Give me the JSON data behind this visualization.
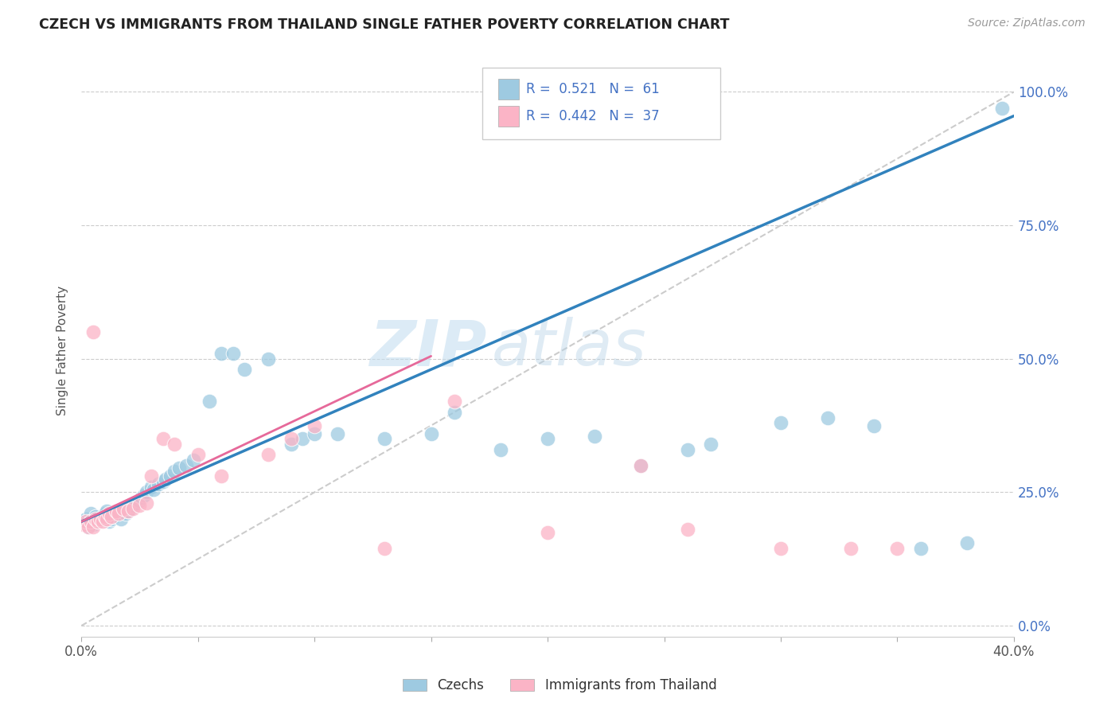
{
  "title": "CZECH VS IMMIGRANTS FROM THAILAND SINGLE FATHER POVERTY CORRELATION CHART",
  "source": "Source: ZipAtlas.com",
  "ylabel": "Single Father Poverty",
  "yticks": [
    "0.0%",
    "25.0%",
    "50.0%",
    "75.0%",
    "100.0%"
  ],
  "ytick_vals": [
    0.0,
    0.25,
    0.5,
    0.75,
    1.0
  ],
  "xlim": [
    0,
    0.4
  ],
  "ylim": [
    -0.02,
    1.05
  ],
  "legend_labels": [
    "Czechs",
    "Immigrants from Thailand"
  ],
  "czech_R": "0.521",
  "czech_N": "61",
  "thai_R": "0.442",
  "thai_N": "37",
  "czech_color": "#9ecae1",
  "thai_color": "#fbb4c6",
  "czech_line_color": "#3182bd",
  "thai_line_color": "#e6699a",
  "dashed_line_color": "#cccccc",
  "watermark_zip": "ZIP",
  "watermark_atlas": "atlas",
  "background_color": "#ffffff",
  "czech_scatter_x": [
    0.001,
    0.002,
    0.003,
    0.004,
    0.005,
    0.006,
    0.007,
    0.008,
    0.009,
    0.01,
    0.011,
    0.012,
    0.013,
    0.014,
    0.015,
    0.016,
    0.017,
    0.018,
    0.019,
    0.02,
    0.021,
    0.022,
    0.023,
    0.025,
    0.026,
    0.027,
    0.028,
    0.03,
    0.031,
    0.033,
    0.035,
    0.036,
    0.038,
    0.04,
    0.042,
    0.045,
    0.048,
    0.055,
    0.06,
    0.065,
    0.07,
    0.08,
    0.09,
    0.095,
    0.1,
    0.11,
    0.13,
    0.15,
    0.16,
    0.18,
    0.2,
    0.22,
    0.24,
    0.26,
    0.27,
    0.3,
    0.32,
    0.34,
    0.36,
    0.38,
    0.395
  ],
  "czech_scatter_y": [
    0.195,
    0.2,
    0.185,
    0.21,
    0.19,
    0.205,
    0.195,
    0.2,
    0.205,
    0.21,
    0.215,
    0.195,
    0.2,
    0.205,
    0.21,
    0.215,
    0.2,
    0.22,
    0.21,
    0.215,
    0.22,
    0.225,
    0.23,
    0.235,
    0.24,
    0.245,
    0.25,
    0.26,
    0.255,
    0.265,
    0.27,
    0.275,
    0.28,
    0.29,
    0.295,
    0.3,
    0.31,
    0.42,
    0.51,
    0.51,
    0.48,
    0.5,
    0.34,
    0.35,
    0.36,
    0.36,
    0.35,
    0.36,
    0.4,
    0.33,
    0.35,
    0.355,
    0.3,
    0.33,
    0.34,
    0.38,
    0.39,
    0.375,
    0.145,
    0.155,
    0.97
  ],
  "thai_scatter_x": [
    0.001,
    0.002,
    0.003,
    0.004,
    0.005,
    0.006,
    0.007,
    0.008,
    0.009,
    0.01,
    0.011,
    0.012,
    0.013,
    0.015,
    0.016,
    0.018,
    0.02,
    0.022,
    0.025,
    0.028,
    0.03,
    0.035,
    0.04,
    0.05,
    0.06,
    0.08,
    0.09,
    0.1,
    0.13,
    0.16,
    0.2,
    0.24,
    0.26,
    0.3,
    0.33,
    0.35,
    0.005
  ],
  "thai_scatter_y": [
    0.19,
    0.195,
    0.185,
    0.195,
    0.185,
    0.2,
    0.195,
    0.2,
    0.195,
    0.205,
    0.2,
    0.21,
    0.205,
    0.215,
    0.21,
    0.22,
    0.215,
    0.22,
    0.225,
    0.23,
    0.28,
    0.35,
    0.34,
    0.32,
    0.28,
    0.32,
    0.35,
    0.375,
    0.145,
    0.42,
    0.175,
    0.3,
    0.18,
    0.145,
    0.145,
    0.145,
    0.55
  ],
  "czech_line_x0": 0.0,
  "czech_line_y0": 0.195,
  "czech_line_x1": 0.4,
  "czech_line_y1": 0.955,
  "thai_line_x0": 0.0,
  "thai_line_y0": 0.195,
  "thai_line_x1": 0.15,
  "thai_line_y1": 0.505
}
